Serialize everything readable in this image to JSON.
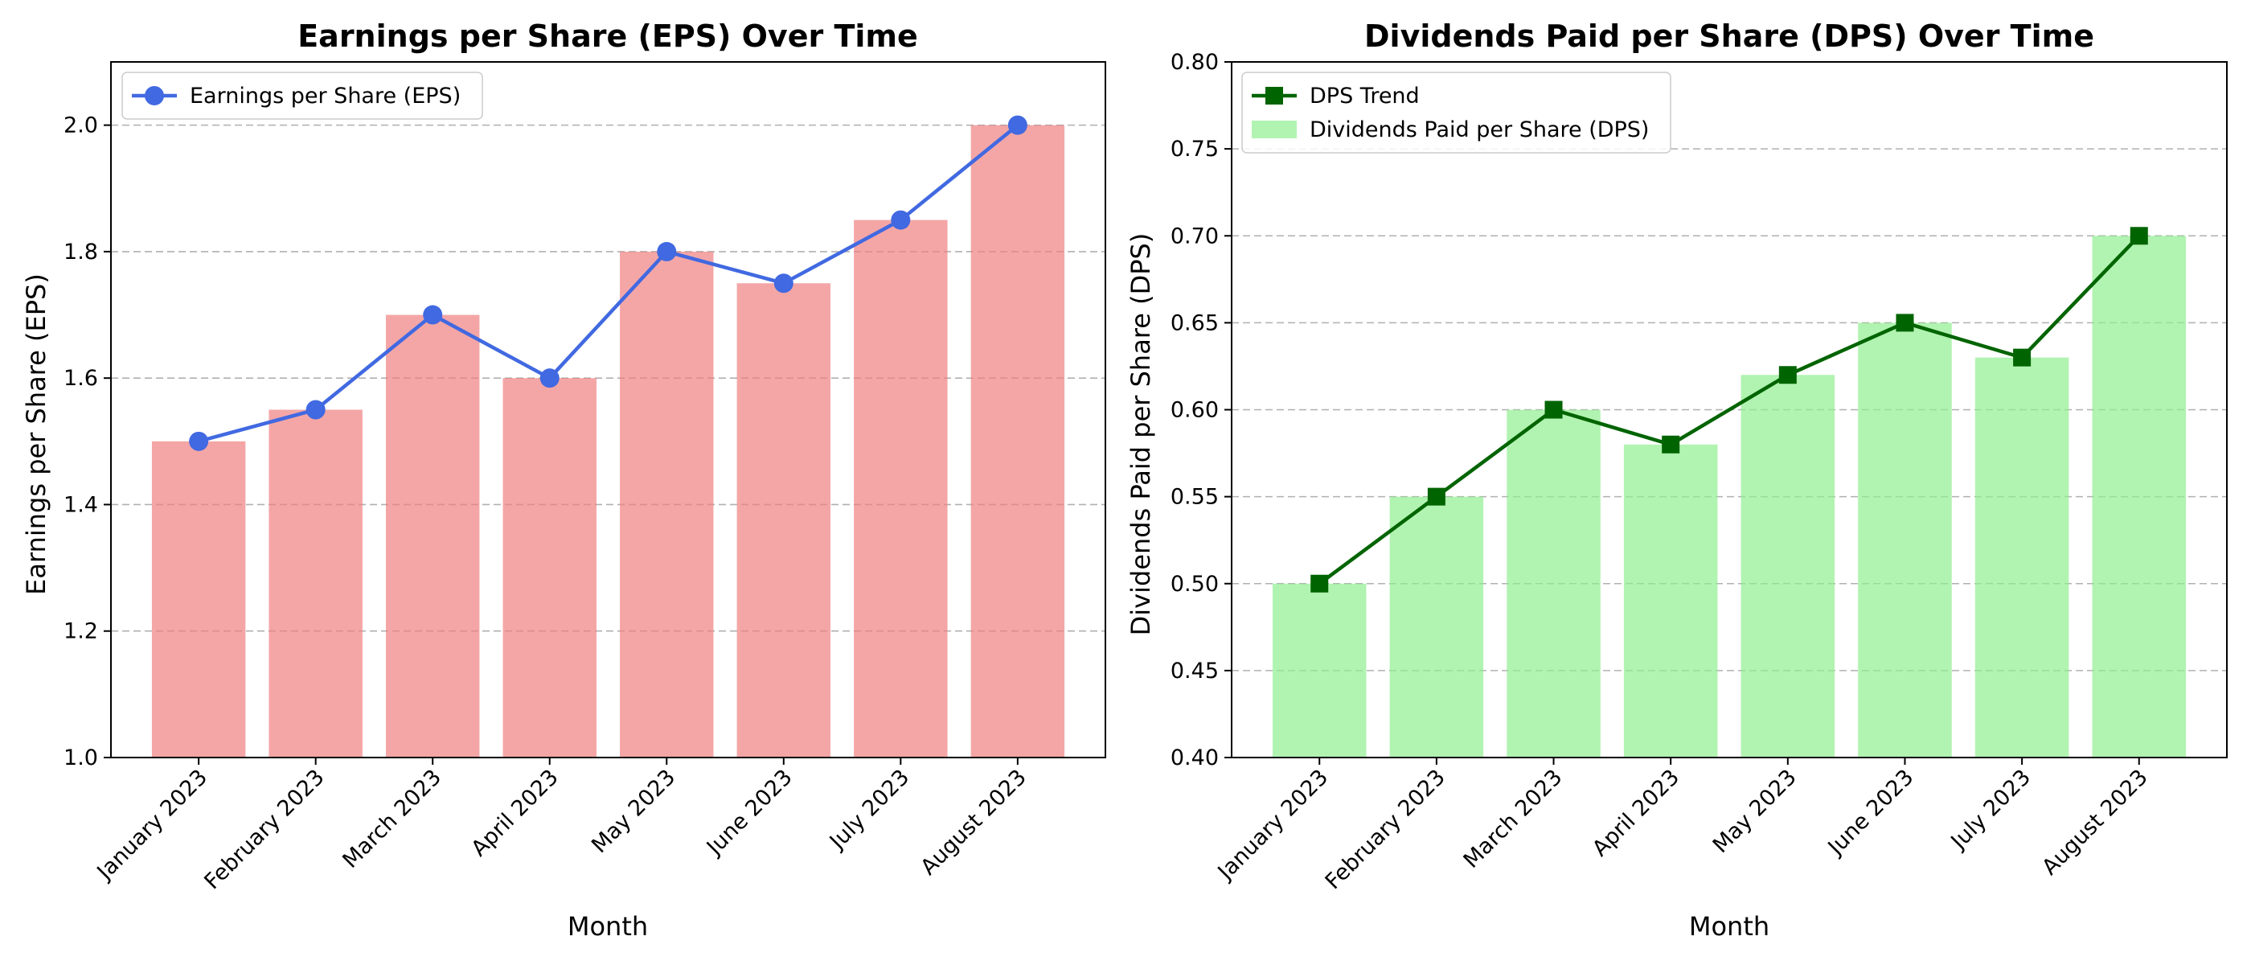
{
  "chart_data": [
    {
      "type": "bar",
      "title": "Earnings per Share (EPS) Over Time",
      "xlabel": "Month",
      "ylabel": "Earnings per Share (EPS)",
      "categories": [
        "January 2023",
        "February 2023",
        "March 2023",
        "April 2023",
        "May 2023",
        "June 2023",
        "July 2023",
        "August 2023"
      ],
      "series": [
        {
          "name": "",
          "kind": "bar",
          "color": "#f08080",
          "values": [
            1.5,
            1.55,
            1.7,
            1.6,
            1.8,
            1.75,
            1.85,
            2.0
          ]
        },
        {
          "name": "Earnings per Share (EPS)",
          "kind": "line",
          "marker": "circle",
          "color": "#4169e1",
          "values": [
            1.5,
            1.55,
            1.7,
            1.6,
            1.8,
            1.75,
            1.85,
            2.0
          ]
        }
      ],
      "ylim": [
        1.0,
        2.1
      ],
      "yticks": [
        1.0,
        1.2,
        1.4,
        1.6,
        1.8,
        2.0
      ],
      "ytick_labels": [
        "1.0",
        "1.2",
        "1.4",
        "1.6",
        "1.8",
        "2.0"
      ],
      "grid": "y-dashed",
      "legend_position": "top-left"
    },
    {
      "type": "bar",
      "title": "Dividends Paid per Share (DPS) Over Time",
      "xlabel": "Month",
      "ylabel": "Dividends Paid per Share (DPS)",
      "categories": [
        "January 2023",
        "February 2023",
        "March 2023",
        "April 2023",
        "May 2023",
        "June 2023",
        "July 2023",
        "August 2023"
      ],
      "series": [
        {
          "name": "Dividends Paid per Share (DPS)",
          "kind": "bar",
          "color": "#90ee90",
          "values": [
            0.5,
            0.55,
            0.6,
            0.58,
            0.62,
            0.65,
            0.63,
            0.7
          ]
        },
        {
          "name": "DPS Trend",
          "kind": "line",
          "marker": "square",
          "color": "#006400",
          "values": [
            0.5,
            0.55,
            0.6,
            0.58,
            0.62,
            0.65,
            0.63,
            0.7
          ]
        }
      ],
      "ylim": [
        0.4,
        0.8
      ],
      "yticks": [
        0.4,
        0.45,
        0.5,
        0.55,
        0.6,
        0.65,
        0.7,
        0.75,
        0.8
      ],
      "ytick_labels": [
        "0.40",
        "0.45",
        "0.50",
        "0.55",
        "0.60",
        "0.65",
        "0.70",
        "0.75",
        "0.80"
      ],
      "grid": "y-dashed",
      "legend_position": "top-left",
      "legend_order": [
        "DPS Trend",
        "Dividends Paid per Share (DPS)"
      ]
    }
  ]
}
